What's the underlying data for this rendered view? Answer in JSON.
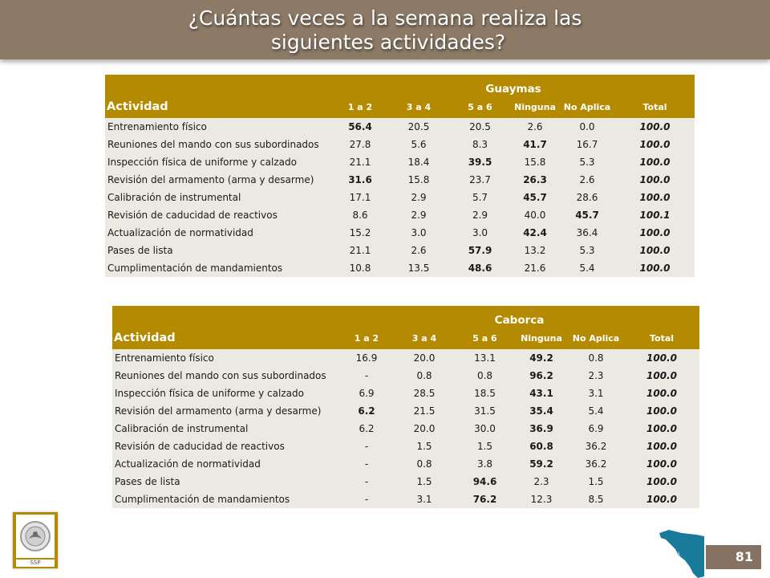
{
  "title": {
    "line1": "¿Cuántas veces a la semana realiza las",
    "line2": "siguientes actividades?"
  },
  "tables": [
    {
      "location": "Guaymas",
      "activity_header": "Actividad",
      "columns": [
        "1 a 2",
        "3 a 4",
        "5 a 6",
        "Ninguna",
        "No Aplica",
        "Total"
      ],
      "rows": [
        {
          "activity": "Entrenamiento físico",
          "values": [
            "56.4",
            "20.5",
            "20.5",
            "2.6",
            "0.0",
            "100.0"
          ]
        },
        {
          "activity": "Reuniones del mando con sus subordinados",
          "values": [
            "27.8",
            "5.6",
            "8.3",
            "41.7",
            "16.7",
            "100.0"
          ]
        },
        {
          "activity": "Inspección física de uniforme y calzado",
          "values": [
            "21.1",
            "18.4",
            "39.5",
            "15.8",
            "5.3",
            "100.0"
          ]
        },
        {
          "activity": "Revisión del armamento (arma y desarme)",
          "values": [
            "31.6",
            "15.8",
            "23.7",
            "26.3",
            "2.6",
            "100.0"
          ]
        },
        {
          "activity": "Calibración de instrumental",
          "values": [
            "17.1",
            "2.9",
            "5.7",
            "45.7",
            "28.6",
            "100.0"
          ]
        },
        {
          "activity": "Revisión de caducidad de reactivos",
          "values": [
            "8.6",
            "2.9",
            "2.9",
            "40.0",
            "45.7",
            "100.1"
          ]
        },
        {
          "activity": "Actualización de normatividad",
          "values": [
            "15.2",
            "3.0",
            "3.0",
            "42.4",
            "36.4",
            "100.0"
          ]
        },
        {
          "activity": "Pases de lista",
          "values": [
            "21.1",
            "2.6",
            "57.9",
            "13.2",
            "5.3",
            "100.0"
          ]
        },
        {
          "activity": "Cumplimentación de mandamientos",
          "values": [
            "10.8",
            "13.5",
            "48.6",
            "21.6",
            "5.4",
            "100.0"
          ]
        }
      ],
      "bold_cells": [
        [
          0,
          0
        ],
        [
          1,
          3
        ],
        [
          2,
          2
        ],
        [
          3,
          0
        ],
        [
          3,
          3
        ],
        [
          4,
          3
        ],
        [
          5,
          4
        ],
        [
          6,
          3
        ],
        [
          7,
          2
        ],
        [
          8,
          2
        ]
      ]
    },
    {
      "location": "Caborca",
      "activity_header": "Actividad",
      "columns": [
        "1 a 2",
        "3 a 4",
        "5 a 6",
        "Ninguna",
        "No Aplica",
        "Total"
      ],
      "rows": [
        {
          "activity": "Entrenamiento físico",
          "values": [
            "16.9",
            "20.0",
            "13.1",
            "49.2",
            "0.8",
            "100.0"
          ]
        },
        {
          "activity": "Reuniones del mando con sus subordinados",
          "values": [
            "-",
            "0.8",
            "0.8",
            "96.2",
            "2.3",
            "100.0"
          ]
        },
        {
          "activity": "Inspección física de uniforme y calzado",
          "values": [
            "6.9",
            "28.5",
            "18.5",
            "43.1",
            "3.1",
            "100.0"
          ]
        },
        {
          "activity": "Revisión del armamento (arma y desarme)",
          "values": [
            "6.2",
            "21.5",
            "31.5",
            "35.4",
            "5.4",
            "100.0"
          ]
        },
        {
          "activity": "Calibración de instrumental",
          "values": [
            "6.2",
            "20.0",
            "30.0",
            "36.9",
            "6.9",
            "100.0"
          ]
        },
        {
          "activity": "Revisión de caducidad de reactivos",
          "values": [
            "-",
            "1.5",
            "1.5",
            "60.8",
            "36.2",
            "100.0"
          ]
        },
        {
          "activity": "Actualización de normatividad",
          "values": [
            "-",
            "0.8",
            "3.8",
            "59.2",
            "36.2",
            "100.0"
          ]
        },
        {
          "activity": "Pases de lista",
          "values": [
            "-",
            "1.5",
            "94.6",
            "2.3",
            "1.5",
            "100.0"
          ]
        },
        {
          "activity": "Cumplimentación de mandamientos",
          "values": [
            "-",
            "3.1",
            "76.2",
            "12.3",
            "8.5",
            "100.0"
          ]
        }
      ],
      "bold_cells": [
        [
          0,
          3
        ],
        [
          1,
          3
        ],
        [
          2,
          3
        ],
        [
          3,
          0
        ],
        [
          3,
          3
        ],
        [
          4,
          3
        ],
        [
          5,
          3
        ],
        [
          6,
          3
        ],
        [
          7,
          2
        ],
        [
          8,
          2
        ]
      ]
    }
  ],
  "logo": {
    "label": "SSP",
    "icon": "ssp-seal-icon"
  },
  "map": {
    "icon": "sonora-map-icon",
    "color": "#1a7a9a"
  },
  "page_number": "81",
  "colors": {
    "banner": "#8c7a67",
    "table_header": "#b38a00",
    "table_body": "#ece9e2",
    "page_number_bg": "#857262"
  }
}
